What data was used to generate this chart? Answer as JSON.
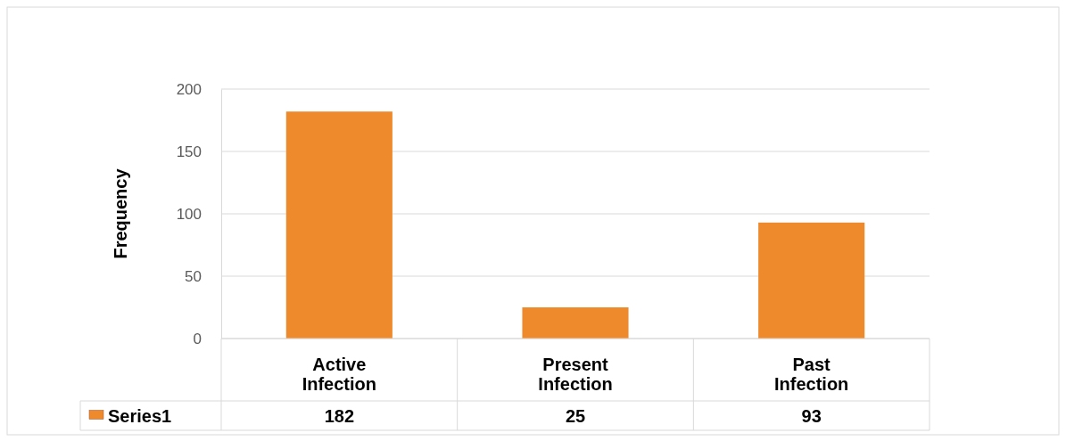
{
  "chart_data": {
    "type": "bar",
    "ylabel": "Frequency",
    "categories": [
      "Active Infection",
      "Present Infection",
      "Past Infection"
    ],
    "series": [
      {
        "name": "Series1",
        "color": "#ef8a2c",
        "values": [
          182,
          25,
          93
        ]
      }
    ],
    "ylim": [
      0,
      200
    ],
    "yticks": [
      0,
      50,
      100,
      150,
      200
    ],
    "grid": "y",
    "legend": "bottom",
    "data_labels": true
  }
}
